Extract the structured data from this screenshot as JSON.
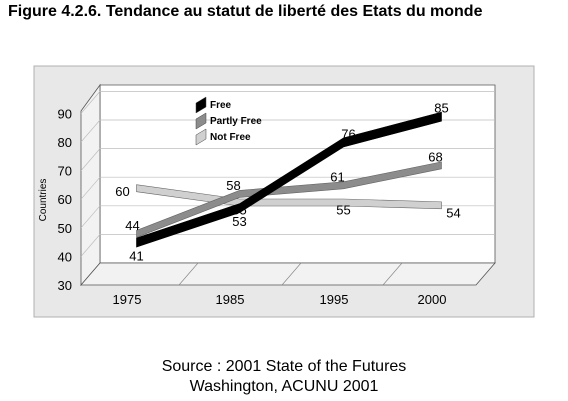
{
  "figure_title": "Figure 4.2.6. Tendance au statut de liberté des Etats du monde",
  "source": {
    "line1": "Source : 2001 State of the Futures",
    "line2": "Washington, ACUNU 2001"
  },
  "chart_data": {
    "type": "line",
    "title": "",
    "xlabel": "",
    "ylabel": "Countries",
    "categories": [
      "1975",
      "1985",
      "1995",
      "2000"
    ],
    "ylim": [
      30,
      90
    ],
    "yticks": [
      30,
      40,
      50,
      60,
      70,
      80,
      90
    ],
    "grid": true,
    "legend_position": "top-left",
    "series": [
      {
        "name": "Free",
        "values": [
          41,
          53,
          76,
          85
        ],
        "color": "#000000"
      },
      {
        "name": "Partly Free",
        "values": [
          44,
          58,
          61,
          68
        ],
        "color": "#8c8c8c"
      },
      {
        "name": "Not Free",
        "values": [
          60,
          55,
          55,
          54
        ],
        "color": "#d0d0d0"
      }
    ]
  }
}
